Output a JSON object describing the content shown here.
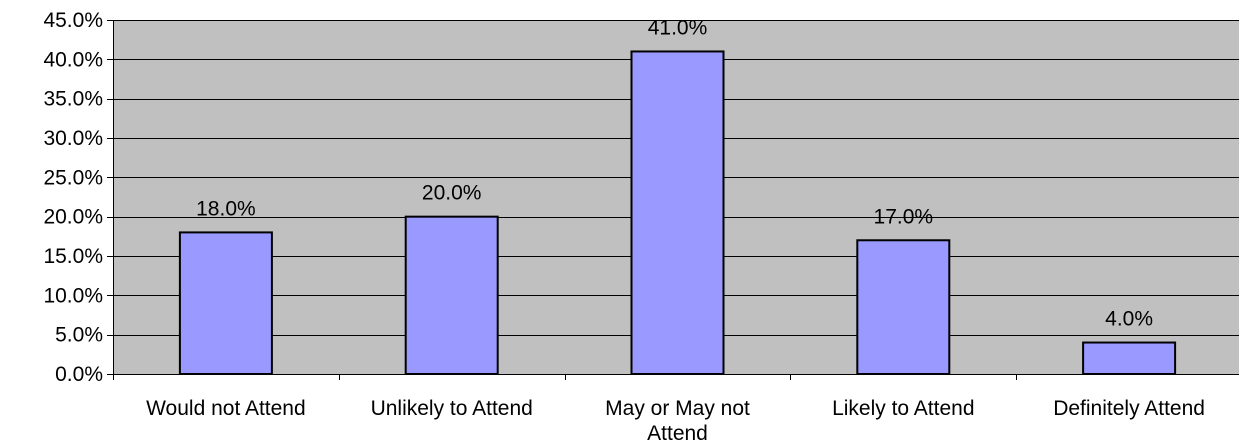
{
  "chart_data": {
    "type": "bar",
    "categories": [
      [
        "Would not Attend"
      ],
      [
        "Unlikely to Attend"
      ],
      [
        "May or May not",
        "Attend"
      ],
      [
        "Likely to Attend"
      ],
      [
        "Definitely Attend"
      ]
    ],
    "values": [
      18.0,
      20.0,
      41.0,
      17.0,
      4.0
    ],
    "data_labels": [
      "18.0%",
      "20.0%",
      "41.0%",
      "17.0%",
      "4.0%"
    ],
    "y_ticks": [
      0,
      5,
      10,
      15,
      20,
      25,
      30,
      35,
      40,
      45
    ],
    "y_tick_labels": [
      "0.0%",
      "5.0%",
      "10.0%",
      "15.0%",
      "20.0%",
      "25.0%",
      "30.0%",
      "35.0%",
      "40.0%",
      "45.0%"
    ],
    "ylim": [
      0,
      45
    ],
    "grid": true,
    "legend": "none",
    "colors": {
      "plot_background": "#c0c0c0",
      "bar_fill": "#9999ff",
      "bar_border": "#000000",
      "gridline": "#000000",
      "axis": "#000000"
    }
  }
}
